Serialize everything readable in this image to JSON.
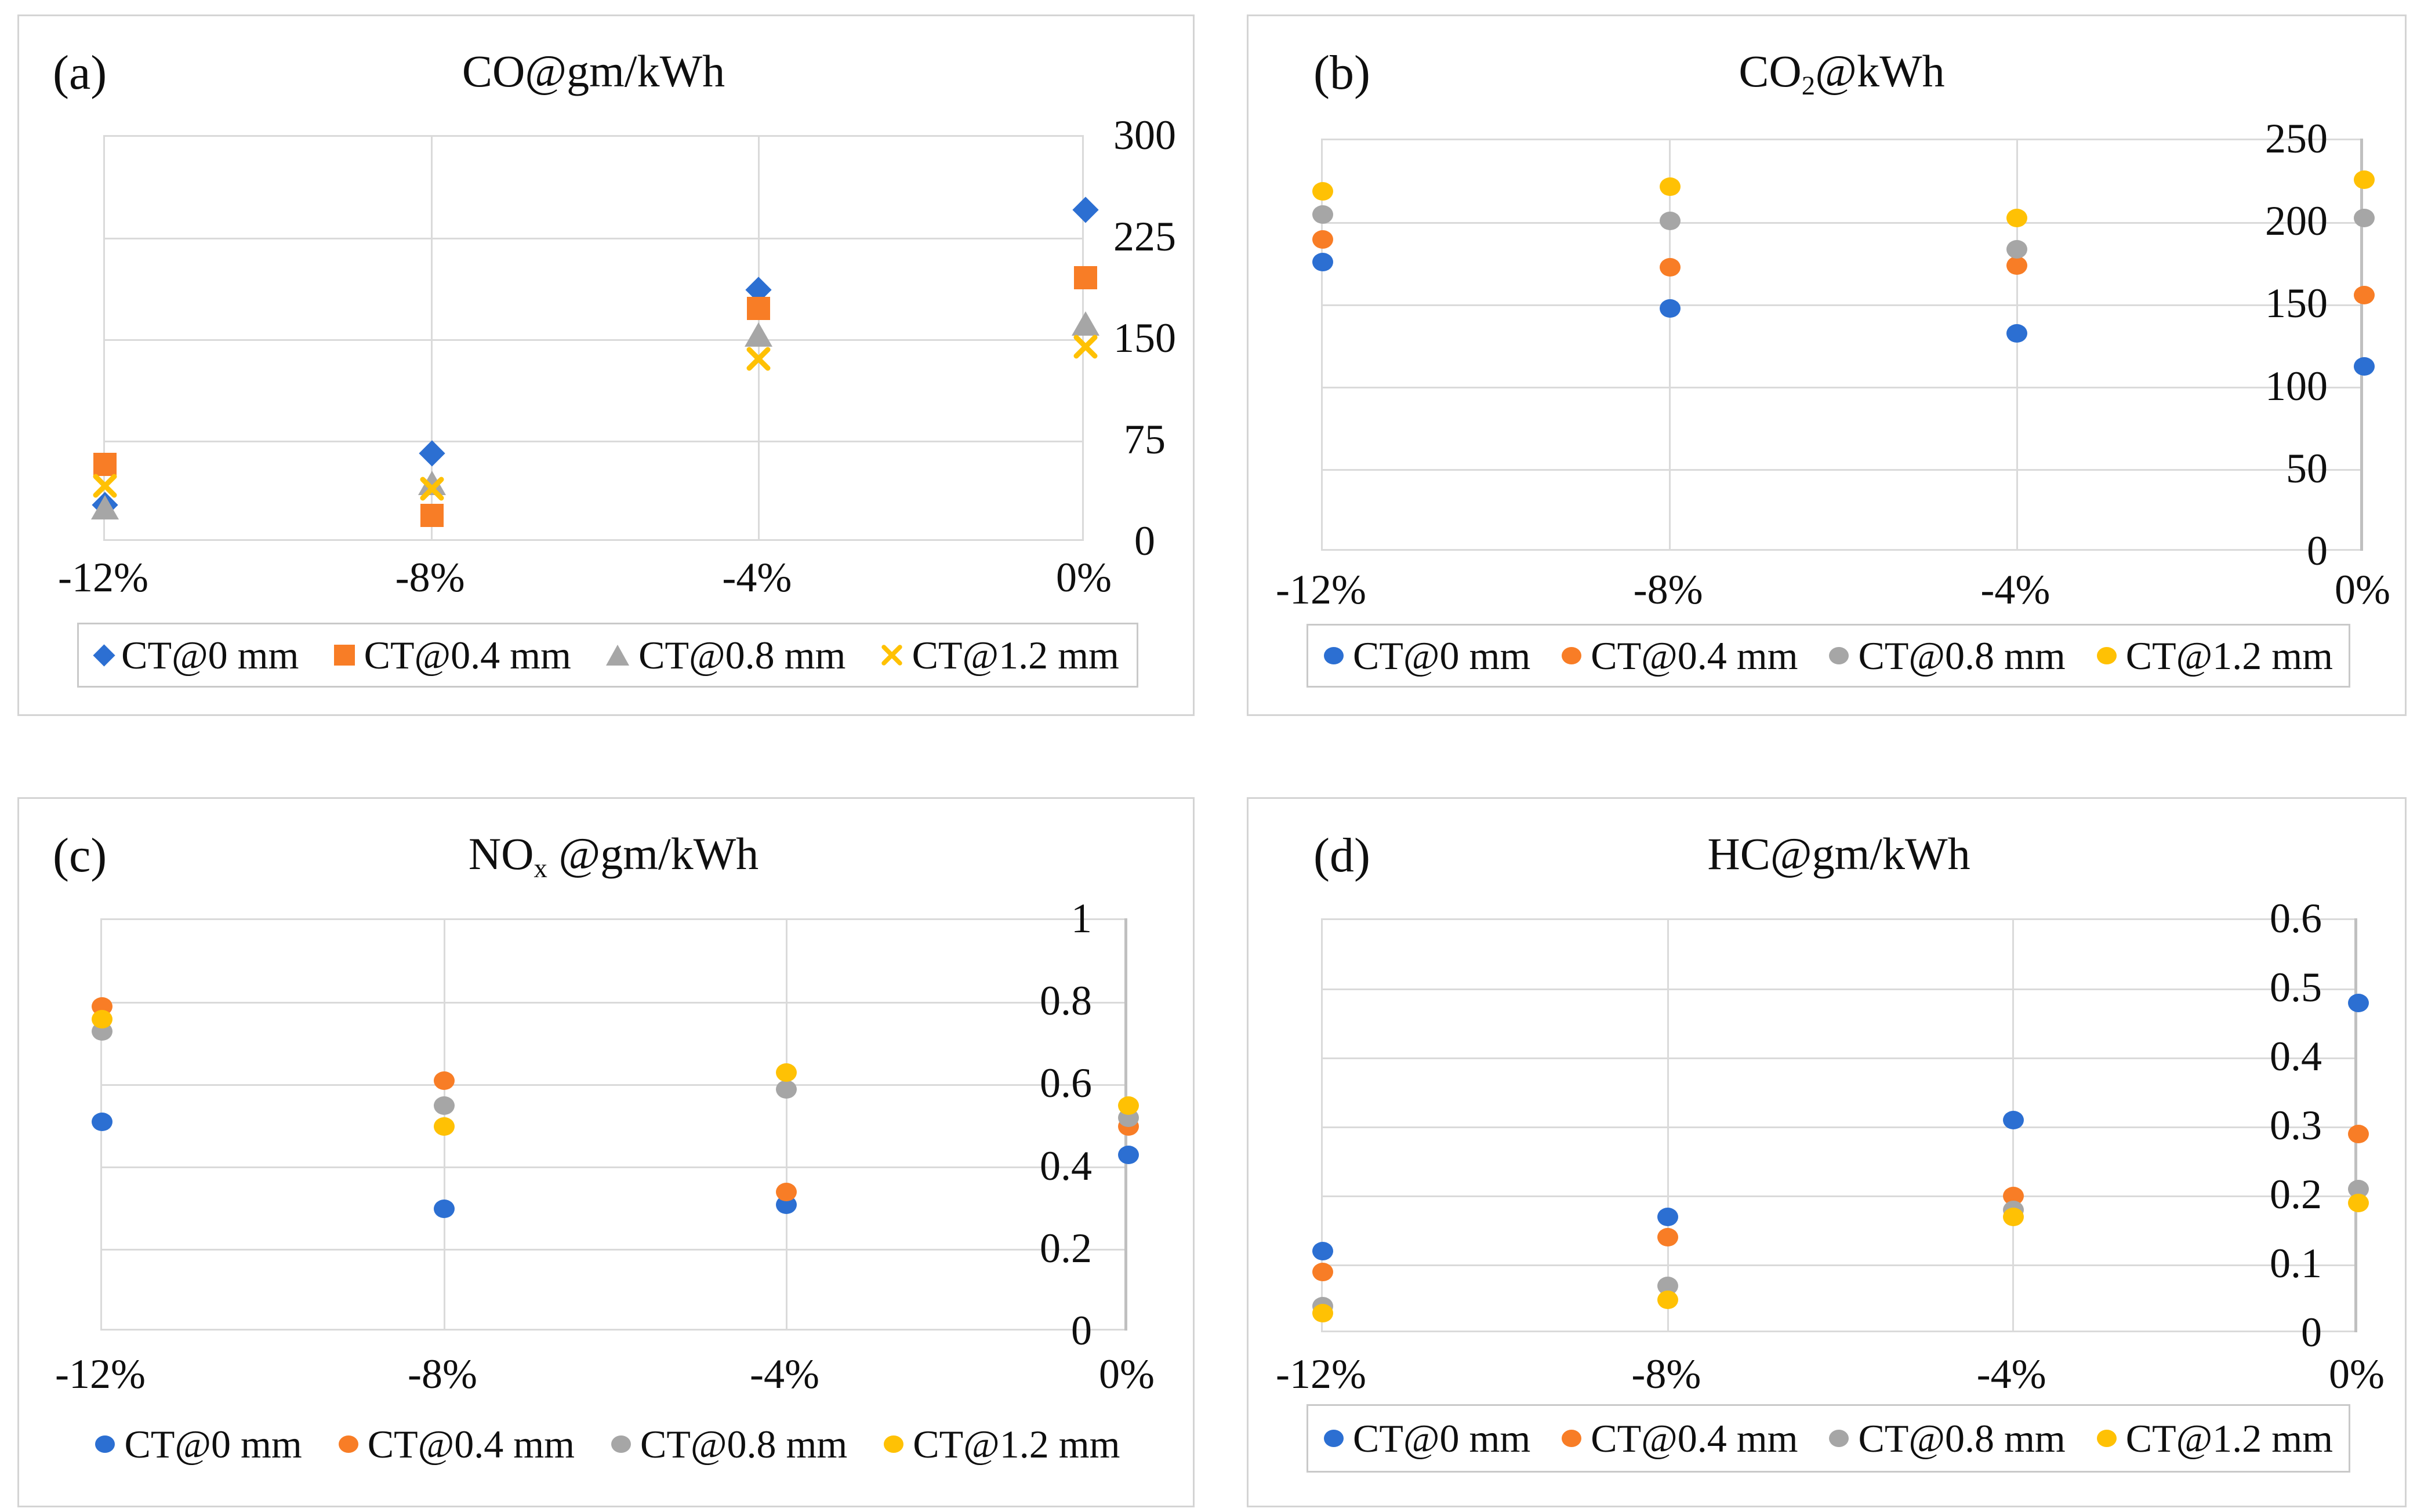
{
  "figure": {
    "background": "#ffffff",
    "panel_tags": [
      "(a)",
      "(b)",
      "(c)",
      "(d)"
    ]
  },
  "colors": {
    "blue": "#2c6fd2",
    "orange": "#f87d26",
    "gray": "#a6a6a6",
    "yellow": "#ffc104",
    "grid": "#dadada",
    "axis": "#c0c0c0",
    "panel_border": "#d4d4d4",
    "legend_border": "#c9c9c9",
    "text": "#0f0f0f"
  },
  "chart_data": [
    {
      "id": "a",
      "tag": "(a)",
      "type": "scatter",
      "title_segments": [
        {
          "t": "CO@gm/kWh",
          "sub": false
        }
      ],
      "categories": [
        "-12%",
        "-8%",
        "-4%",
        "0%"
      ],
      "ylim": [
        0,
        300
      ],
      "y_ticks": [
        {
          "label": "300",
          "value": 300
        },
        {
          "label": "225",
          "value": 225
        },
        {
          "label": "150",
          "value": 150
        },
        {
          "label": "75",
          "value": 75
        },
        {
          "label": "0",
          "value": 0
        }
      ],
      "grid": true,
      "legend_position": "bottom",
      "legend_boxed": true,
      "y_labels_outside": true,
      "series": [
        {
          "name": "CT@0 mm",
          "marker": "diamond",
          "color": "blue",
          "values": [
            28,
            66,
            187,
            246
          ]
        },
        {
          "name": "CT@0.4 mm",
          "marker": "square",
          "color": "orange",
          "values": [
            58,
            20,
            173,
            196
          ]
        },
        {
          "name": "CT@0.8 mm",
          "marker": "triangle",
          "color": "gray",
          "values": [
            26,
            44,
            154,
            162
          ]
        },
        {
          "name": "CT@1.2 mm",
          "marker": "x",
          "color": "yellow",
          "values": [
            42,
            40,
            136,
            145
          ]
        }
      ]
    },
    {
      "id": "b",
      "tag": "(b)",
      "type": "scatter",
      "title_segments": [
        {
          "t": "CO",
          "sub": false
        },
        {
          "t": "2",
          "sub": true
        },
        {
          "t": "@kWh",
          "sub": false
        }
      ],
      "categories": [
        "-12%",
        "-8%",
        "-4%",
        "0%"
      ],
      "ylim": [
        0,
        250
      ],
      "y_ticks": [
        {
          "label": "250",
          "value": 250
        },
        {
          "label": "200",
          "value": 200
        },
        {
          "label": "150",
          "value": 150
        },
        {
          "label": "100",
          "value": 100
        },
        {
          "label": "50",
          "value": 50
        },
        {
          "label": "0",
          "value": 0
        }
      ],
      "grid": true,
      "legend_position": "bottom",
      "legend_boxed": true,
      "y_labels_outside": false,
      "series": [
        {
          "name": "CT@0 mm",
          "marker": "circle",
          "color": "blue",
          "values": [
            176,
            148,
            133,
            113
          ]
        },
        {
          "name": "CT@0.4 mm",
          "marker": "circle",
          "color": "orange",
          "values": [
            190,
            173,
            174,
            156
          ]
        },
        {
          "name": "CT@0.8 mm",
          "marker": "circle",
          "color": "gray",
          "values": [
            205,
            201,
            184,
            203
          ]
        },
        {
          "name": "CT@1.2 mm",
          "marker": "circle",
          "color": "yellow",
          "values": [
            219,
            222,
            203,
            226
          ]
        }
      ]
    },
    {
      "id": "c",
      "tag": "(c)",
      "type": "scatter",
      "title_segments": [
        {
          "t": "NO",
          "sub": false
        },
        {
          "t": "x",
          "sub": true
        },
        {
          "t": " @gm/kWh",
          "sub": false
        }
      ],
      "categories": [
        "-12%",
        "-8%",
        "-4%",
        "0%"
      ],
      "ylim": [
        0,
        1
      ],
      "y_ticks": [
        {
          "label": "1",
          "value": 1
        },
        {
          "label": "0.8",
          "value": 0.8
        },
        {
          "label": "0.6",
          "value": 0.6
        },
        {
          "label": "0.4",
          "value": 0.4
        },
        {
          "label": "0.2",
          "value": 0.2
        },
        {
          "label": "0",
          "value": 0
        }
      ],
      "grid": true,
      "legend_position": "bottom",
      "legend_boxed": false,
      "y_labels_outside": false,
      "series": [
        {
          "name": "CT@0 mm",
          "marker": "circle",
          "color": "blue",
          "values": [
            0.51,
            0.3,
            0.31,
            0.43
          ]
        },
        {
          "name": "CT@0.4 mm",
          "marker": "circle",
          "color": "orange",
          "values": [
            0.79,
            0.61,
            0.34,
            0.5
          ]
        },
        {
          "name": "CT@0.8 mm",
          "marker": "circle",
          "color": "gray",
          "values": [
            0.73,
            0.55,
            0.59,
            0.52
          ]
        },
        {
          "name": "CT@1.2 mm",
          "marker": "circle",
          "color": "yellow",
          "values": [
            0.76,
            0.5,
            0.63,
            0.55
          ]
        }
      ]
    },
    {
      "id": "d",
      "tag": "(d)",
      "type": "scatter",
      "title_segments": [
        {
          "t": "HC@gm/kWh",
          "sub": false
        }
      ],
      "categories": [
        "-12%",
        "-8%",
        "-4%",
        "0%"
      ],
      "ylim": [
        0,
        0.6
      ],
      "y_ticks": [
        {
          "label": "0.6",
          "value": 0.6
        },
        {
          "label": "0.5",
          "value": 0.5
        },
        {
          "label": "0.4",
          "value": 0.4
        },
        {
          "label": "0.3",
          "value": 0.3
        },
        {
          "label": "0.2",
          "value": 0.2
        },
        {
          "label": "0.1",
          "value": 0.1
        },
        {
          "label": "0",
          "value": 0
        }
      ],
      "grid": true,
      "legend_position": "bottom",
      "legend_boxed": true,
      "y_labels_outside": false,
      "series": [
        {
          "name": "CT@0 mm",
          "marker": "circle",
          "color": "blue",
          "values": [
            0.12,
            0.17,
            0.31,
            0.48
          ]
        },
        {
          "name": "CT@0.4 mm",
          "marker": "circle",
          "color": "orange",
          "values": [
            0.09,
            0.14,
            0.2,
            0.29
          ]
        },
        {
          "name": "CT@0.8 mm",
          "marker": "circle",
          "color": "gray",
          "values": [
            0.04,
            0.07,
            0.18,
            0.21
          ]
        },
        {
          "name": "CT@1.2 mm",
          "marker": "circle",
          "color": "yellow",
          "values": [
            0.03,
            0.05,
            0.17,
            0.19
          ]
        }
      ]
    }
  ]
}
